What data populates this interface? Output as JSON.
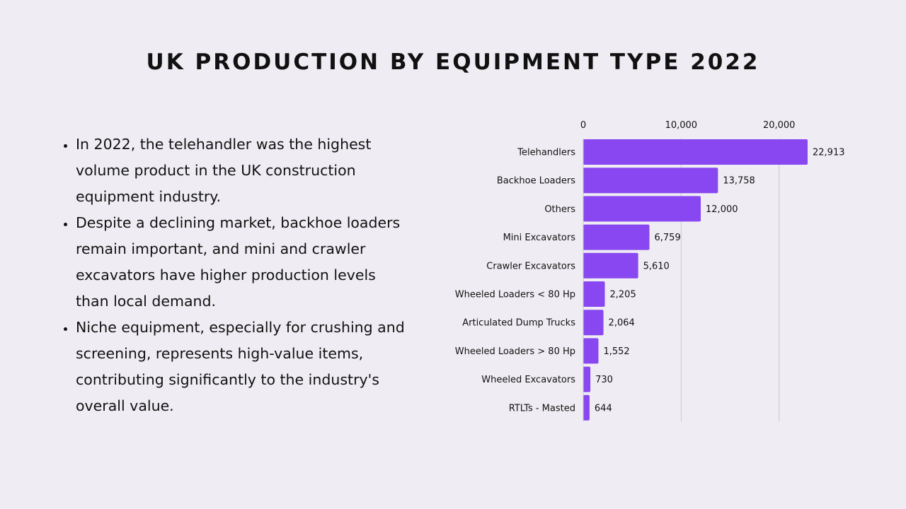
{
  "title": "UK PRODUCTION BY EQUIPMENT TYPE 2022",
  "bullets": [
    "In 2022, the telehandler was the highest volume product in the UK construction equipment industry.",
    "Despite a declining market, backhoe loaders remain important, and mini and crawler excavators have higher production levels than local demand.",
    "Niche equipment, especially for crushing and screening, represents high-value items, contributing significantly to the industry's overall value."
  ],
  "chart_data": {
    "type": "bar",
    "orientation": "horizontal",
    "categories": [
      "Telehandlers",
      "Backhoe Loaders",
      "Others",
      "Mini Excavators",
      "Crawler Excavators",
      "Wheeled Loaders < 80 Hp",
      "Articulated Dump Trucks",
      "Wheeled Loaders > 80 Hp",
      "Wheeled Excavators",
      "RTLTs - Masted"
    ],
    "values": [
      22913,
      13758,
      12000,
      6759,
      5610,
      2205,
      2064,
      1552,
      730,
      644
    ],
    "value_labels": [
      "22,913",
      "13,758",
      "12,000",
      "6,759",
      "5,610",
      "2,205",
      "2,064",
      "1,552",
      "730",
      "644"
    ],
    "x_ticks": [
      0,
      10000,
      20000
    ],
    "x_tick_labels": [
      "0",
      "10,000",
      "20,000"
    ],
    "xlim": [
      0,
      23000
    ],
    "axis_position": "top",
    "grid": true,
    "bar_color": "#8847f0",
    "grid_color": "#c9c7ce"
  }
}
